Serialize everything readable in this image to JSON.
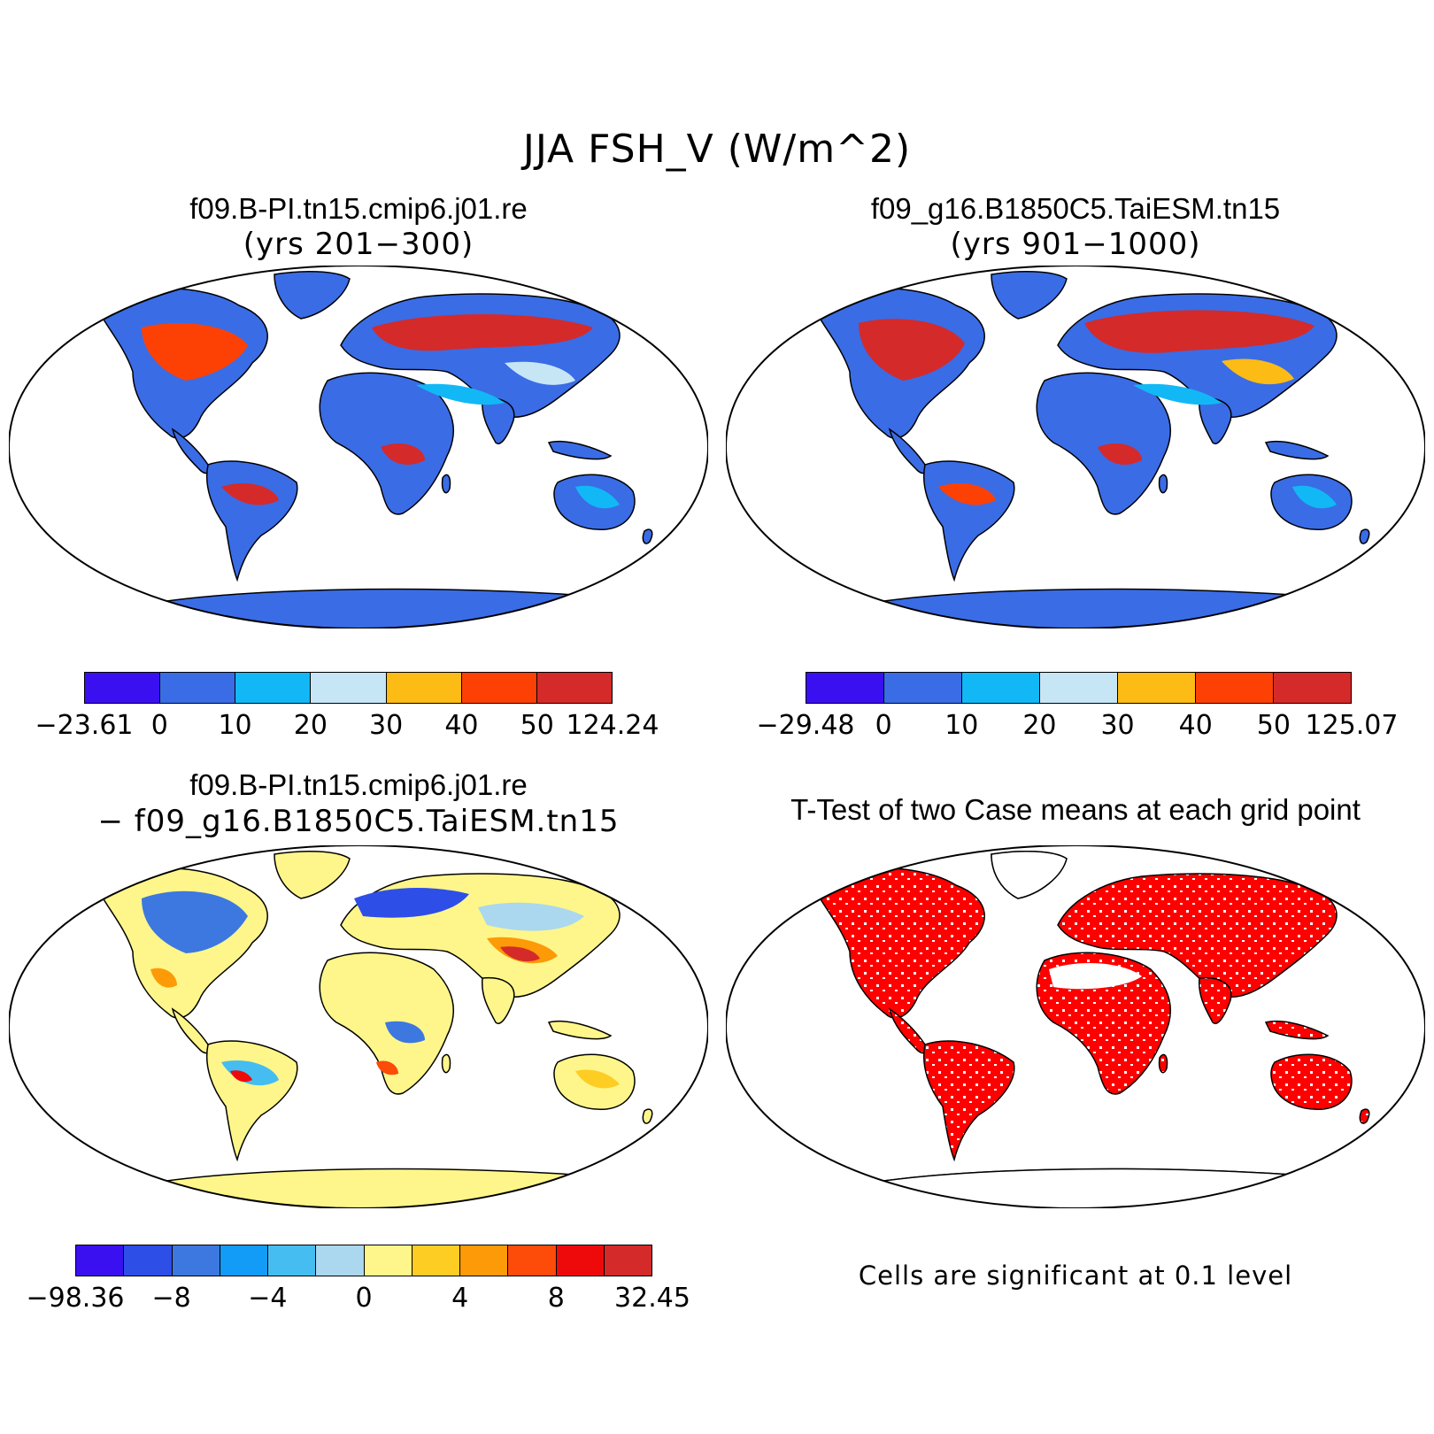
{
  "figure_title": "JJA FSH_V (W/m^2)",
  "panels": [
    {
      "case_name": "f09.B-PI.tn15.cmip6.j01.re",
      "subtitle": "(yrs 201−300)",
      "colorbar": {
        "colors": [
          "#3a10f0",
          "#3a6ce6",
          "#12b8f5",
          "#c6e6f6",
          "#fdbb15",
          "#fd4105",
          "#d42a2a"
        ],
        "labels": [
          "−23.61",
          "0",
          "10",
          "20",
          "30",
          "40",
          "50",
          "124.24"
        ]
      }
    },
    {
      "case_name": "f09_g16.B1850C5.TaiESM.tn15",
      "subtitle": "(yrs 901−1000)",
      "colorbar": {
        "colors": [
          "#3a10f0",
          "#3a6ce6",
          "#12b8f5",
          "#c6e6f6",
          "#fdbb15",
          "#fd4105",
          "#d42a2a"
        ],
        "labels": [
          "−29.48",
          "0",
          "10",
          "20",
          "30",
          "40",
          "50",
          "125.07"
        ]
      }
    },
    {
      "case_name": "f09.B-PI.tn15.cmip6.j01.re",
      "subtitle": "− f09_g16.B1850C5.TaiESM.tn15",
      "colorbar": {
        "colors": [
          "#3a10f0",
          "#2e4ee8",
          "#3d78e0",
          "#139bf8",
          "#45bdf0",
          "#abd8ee",
          "#fef68a",
          "#fdcd23",
          "#fd9a08",
          "#fd4b09",
          "#ee0a0a",
          "#d42a2a"
        ],
        "labels": [
          "−98.36",
          "−8",
          "−4",
          "0",
          "4",
          "8",
          "32.45"
        ]
      }
    },
    {
      "title": "T-Test of two Case means at each grid point",
      "note": "Cells are significant at 0.1 level",
      "significant_color": "#ff0000"
    }
  ]
}
